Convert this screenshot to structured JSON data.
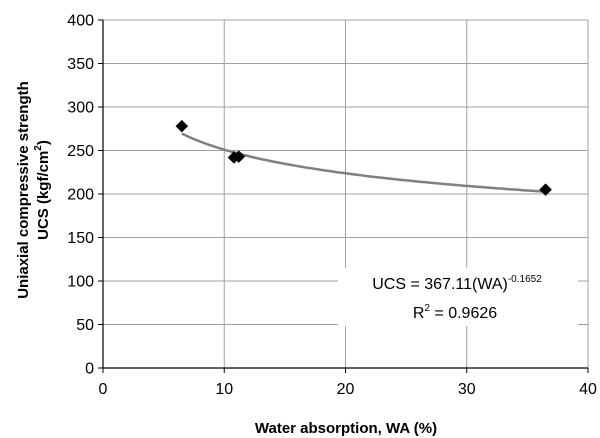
{
  "chart_data": {
    "type": "scatter",
    "xlabel": "Water absorption, WA (%)",
    "ylabel_line1": "Uniaxial compressive strength",
    "ylabel_line2_base": "UCS (kgf/cm",
    "ylabel_line2_sup": "2",
    "ylabel_line2_end": ")",
    "xlim": [
      0,
      40
    ],
    "ylim": [
      0,
      400
    ],
    "x_ticks": [
      "0",
      "10",
      "20",
      "30",
      "40"
    ],
    "y_ticks": [
      "0",
      "50",
      "100",
      "150",
      "200",
      "250",
      "300",
      "350",
      "400"
    ],
    "grid": true,
    "series": [
      {
        "marker": "diamond",
        "color": "#000000",
        "x": [
          6.5,
          10.8,
          11.2,
          36.5
        ],
        "y": [
          278,
          242,
          243,
          205
        ]
      }
    ],
    "trendline": {
      "type": "power",
      "coefficient": 367.11,
      "exponent": -0.1652,
      "x_range": [
        6.5,
        36.5
      ],
      "color": "#808080"
    },
    "annotation": {
      "equation_base": "UCS = 367.11(WA)",
      "equation_sup": "-0.1652",
      "r2_base": "R",
      "r2_sup": "2",
      "r2_value": " = 0.9626"
    }
  }
}
